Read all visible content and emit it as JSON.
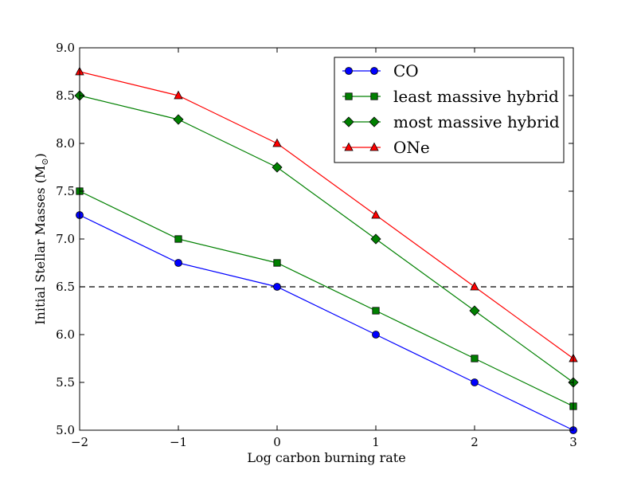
{
  "chart_data": {
    "type": "line",
    "title": "",
    "xlabel": "Log carbon burning rate",
    "ylabel": "Initial Stellar Masses (M",
    "ylabel_sun": "⊙",
    "ylabel_close": ")",
    "xlim": [
      -2,
      3
    ],
    "ylim": [
      5.0,
      9.0
    ],
    "x_ticks": [
      -2,
      -1,
      0,
      1,
      2,
      3
    ],
    "x_tick_labels": [
      "−2",
      "−1",
      "0",
      "1",
      "2",
      "3"
    ],
    "y_ticks": [
      5.0,
      5.5,
      6.0,
      6.5,
      7.0,
      7.5,
      8.0,
      8.5,
      9.0
    ],
    "y_tick_labels": [
      "5.0",
      "5.5",
      "6.0",
      "6.5",
      "7.0",
      "7.5",
      "8.0",
      "8.5",
      "9.0"
    ],
    "grid": false,
    "legend_position": "top-right",
    "reference_line": {
      "y": 6.5,
      "style": "dashed",
      "color": "#000000"
    },
    "x": [
      -2,
      -1,
      0,
      1,
      2,
      3
    ],
    "series": [
      {
        "name": "CO",
        "marker": "circle",
        "color": "#0000ff",
        "values": [
          7.25,
          6.75,
          6.5,
          6.0,
          5.5,
          5.0
        ]
      },
      {
        "name": "least massive hybrid",
        "marker": "square",
        "color": "#008000",
        "values": [
          7.5,
          7.0,
          6.75,
          6.25,
          5.75,
          5.25
        ]
      },
      {
        "name": "most massive hybrid",
        "marker": "diamond",
        "color": "#008000",
        "values": [
          8.5,
          8.25,
          7.75,
          7.0,
          6.25,
          5.5
        ]
      },
      {
        "name": "ONe",
        "marker": "triangle",
        "color": "#ff0000",
        "values": [
          8.75,
          8.5,
          8.0,
          7.25,
          6.5,
          5.75
        ]
      }
    ]
  }
}
